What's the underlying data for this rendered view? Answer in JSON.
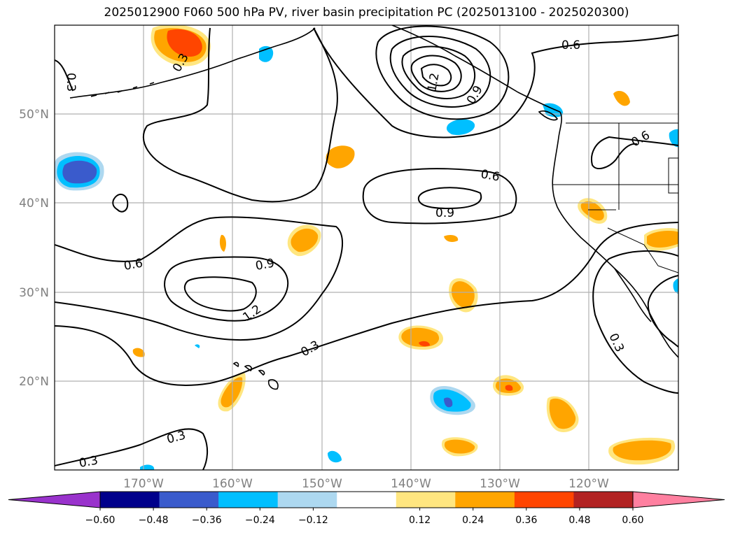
{
  "title": "2025012900 F060 500 hPa PV, river basin precipitation PC (2025013100 - 2025020300)",
  "latitude_labels": [
    "50°N",
    "40°N",
    "30°N",
    "20°N"
  ],
  "longitude_labels": [
    "170°W",
    "160°W",
    "150°W",
    "140°W",
    "130°W",
    "120°W"
  ],
  "contour_labels": [
    "0.3",
    "0.3",
    "0.3",
    "0.3",
    "0.3",
    "0.3",
    "0.6",
    "0.6",
    "0.6",
    "0.6",
    "0.9",
    "0.9",
    "0.9",
    "1.2",
    "1.2"
  ],
  "colorbar": {
    "tick_labels": [
      "−0.60",
      "−0.48",
      "−0.36",
      "−0.24",
      "−0.12",
      "0.12",
      "0.24",
      "0.36",
      "0.48",
      "0.60"
    ],
    "colors": [
      "#9932cc",
      "#00008b",
      "#3a5bcc",
      "#00bfff",
      "#add8f0",
      "#ffffff",
      "#ffe680",
      "#ffa500",
      "#ff4500",
      "#b22222",
      "#ff80a0"
    ]
  },
  "shading_colors": {
    "pos_light": "#ffe680",
    "pos_mid": "#ffa500",
    "pos_strong": "#ff4500",
    "neg_light": "#add8f0",
    "neg_mid": "#00bfff",
    "neg_strong": "#3a5bcc"
  }
}
